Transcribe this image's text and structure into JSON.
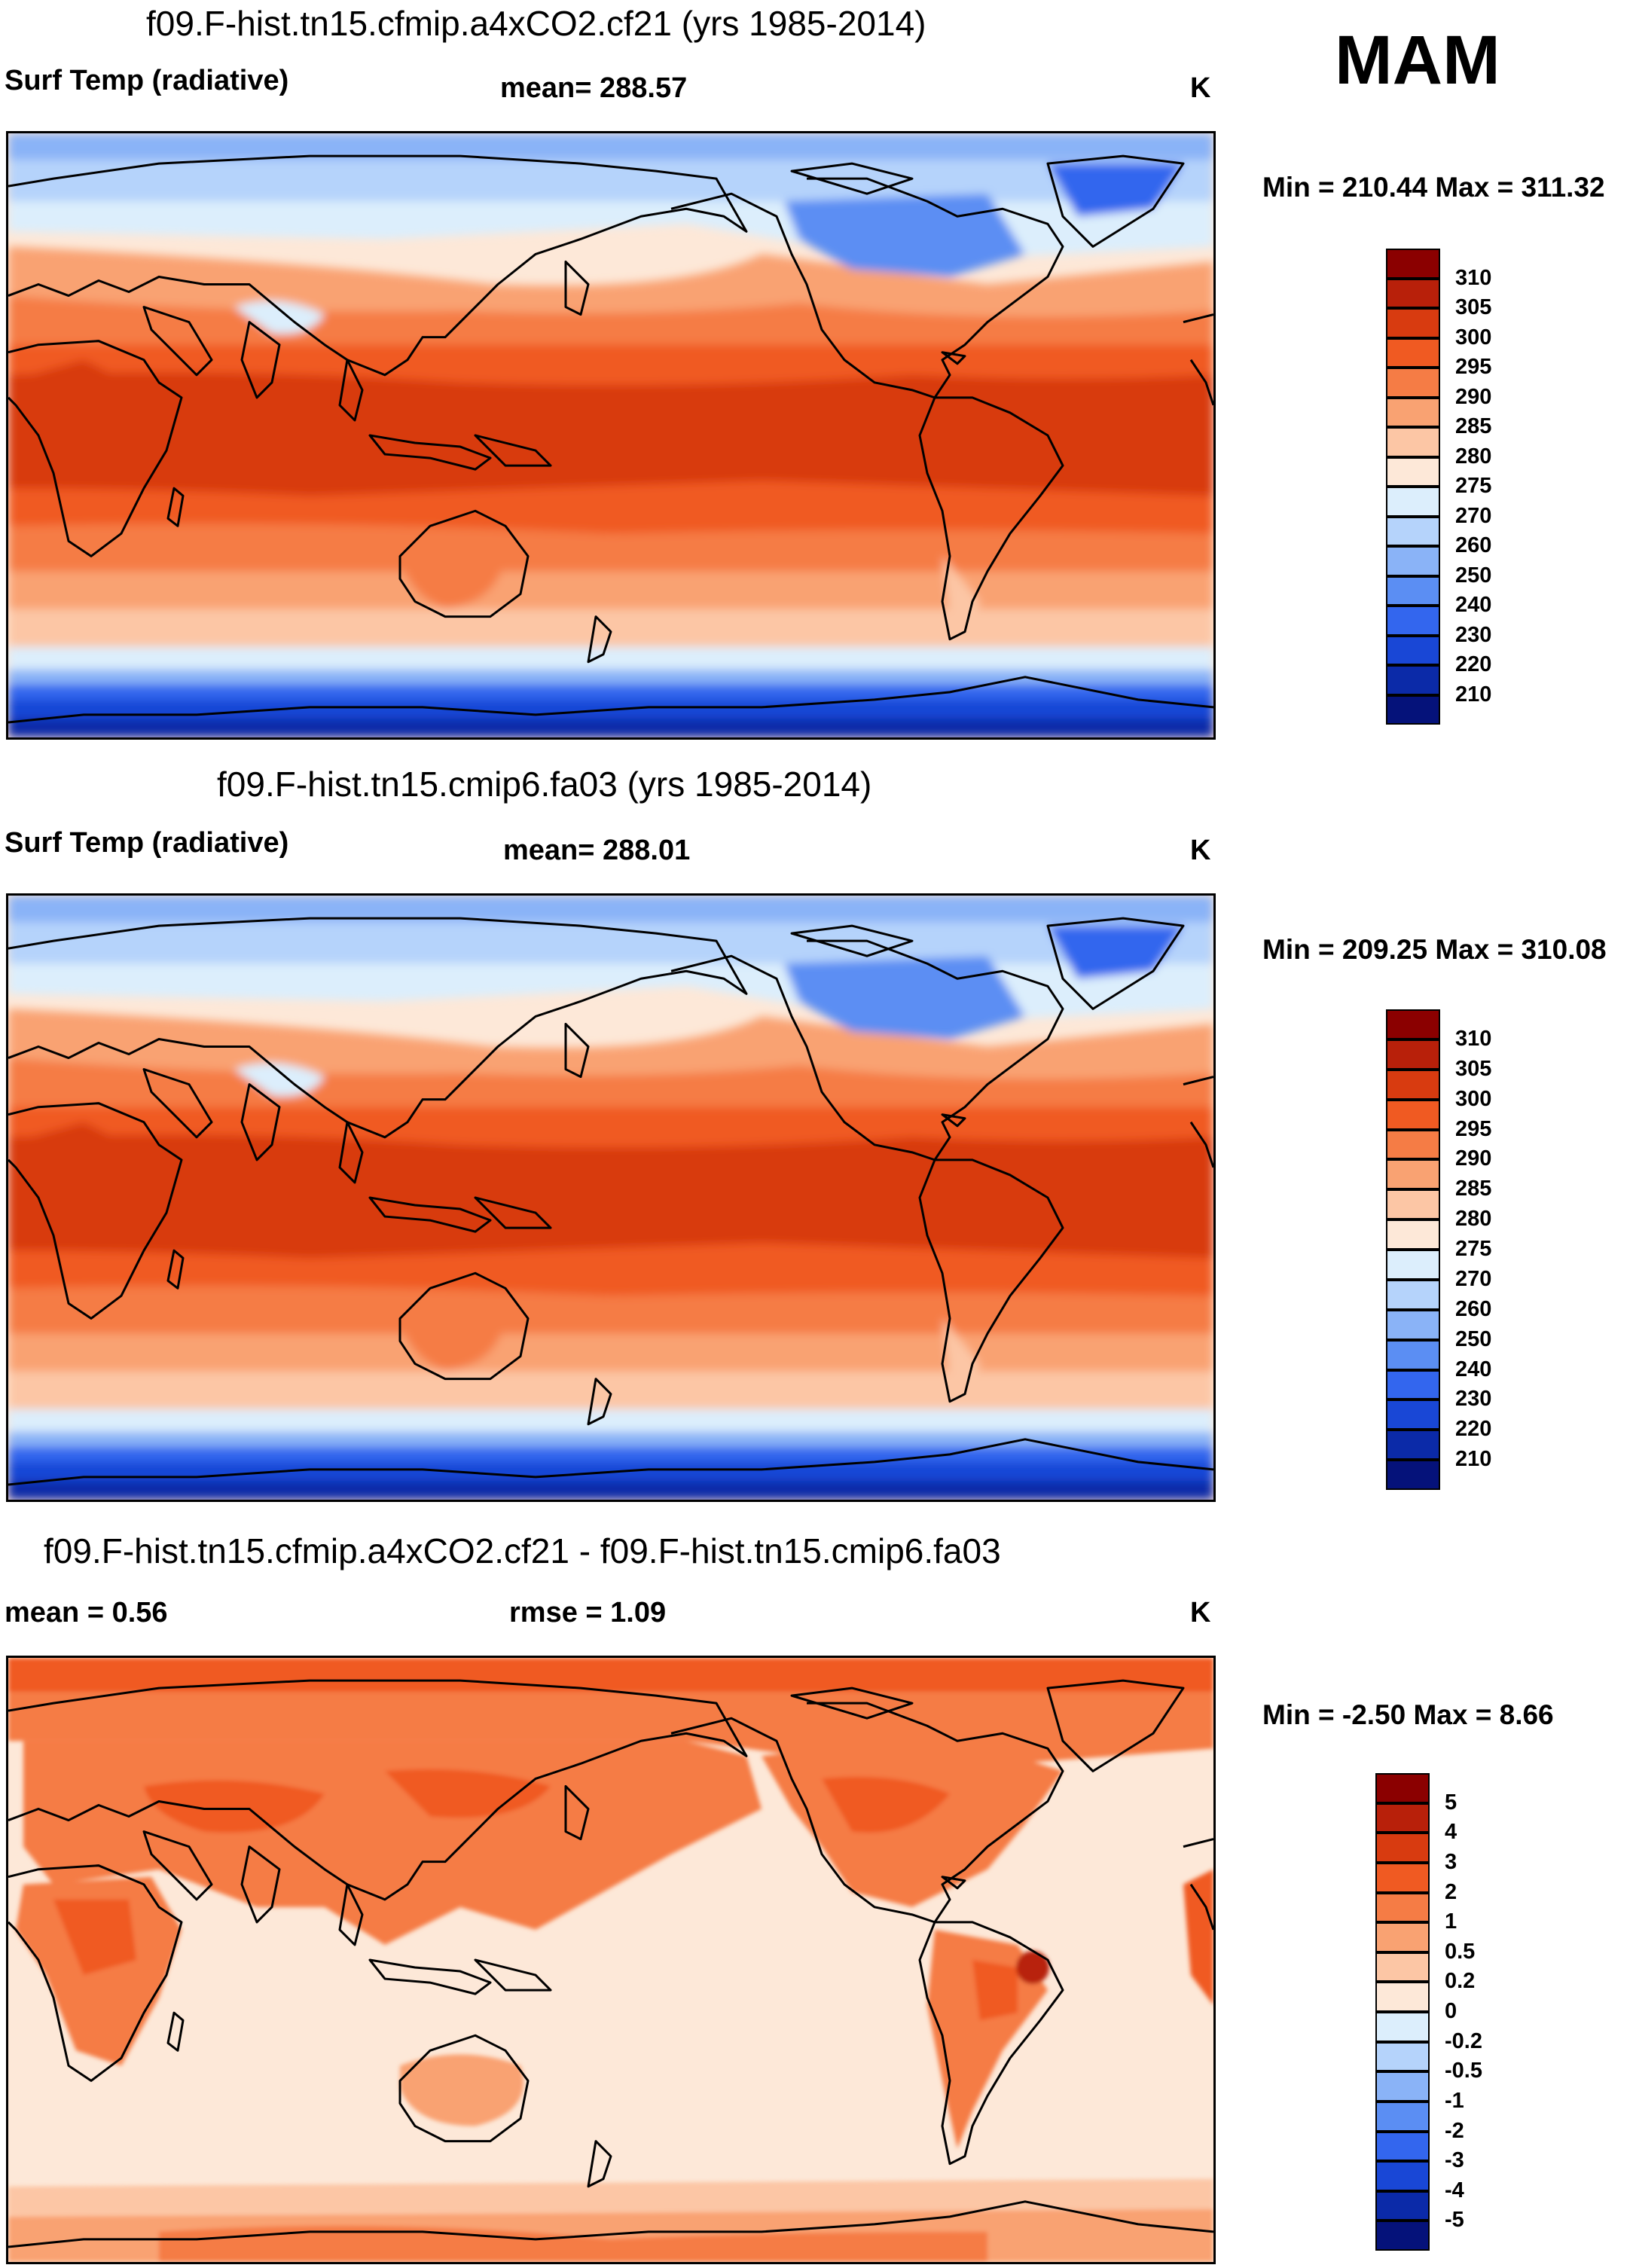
{
  "season": "MAM",
  "panels": [
    {
      "title": "f09.F-hist.tn15.cfmip.a4xCO2.cf21 (yrs 1985-2014)",
      "left_label": "Surf Temp (radiative)",
      "center_label": "mean= 288.57",
      "right_label": "K",
      "minmax": "Min = 210.44 Max = 311.32",
      "map_name": "map-cfmip-a4xco2",
      "variant": "abs"
    },
    {
      "title": "f09.F-hist.tn15.cmip6.fa03 (yrs 1985-2014)",
      "left_label": "Surf Temp (radiative)",
      "center_label": "mean= 288.01",
      "right_label": "K",
      "minmax": "Min = 209.25 Max = 310.08",
      "map_name": "map-cmip6-fa03",
      "variant": "abs"
    },
    {
      "title": "f09.F-hist.tn15.cfmip.a4xCO2.cf21 - f09.F-hist.tn15.cmip6.fa03",
      "left_label": "mean =   0.56",
      "center_label": "rmse =   1.09",
      "right_label": "K",
      "minmax": "Min =  -2.50 Max =   8.66",
      "map_name": "map-difference",
      "variant": "diff"
    }
  ],
  "colorbars": {
    "absolute": {
      "labels": [
        "310",
        "305",
        "300",
        "295",
        "290",
        "285",
        "280",
        "275",
        "270",
        "260",
        "250",
        "240",
        "230",
        "220",
        "210"
      ],
      "colors": [
        "#8b0000",
        "#b8200a",
        "#d83b10",
        "#f05a22",
        "#f57c45",
        "#f9a272",
        "#fcc6a5",
        "#fde8d8",
        "#dceefc",
        "#b5d3fb",
        "#8ab3f7",
        "#5b8ef3",
        "#3366ee",
        "#1947d6",
        "#0b2aa8",
        "#05127a"
      ]
    },
    "difference": {
      "labels": [
        "5",
        "4",
        "3",
        "2",
        "1",
        "0.5",
        "0.2",
        "0",
        "-0.2",
        "-0.5",
        "-1",
        "-2",
        "-3",
        "-4",
        "-5"
      ],
      "colors": [
        "#8b0000",
        "#b8200a",
        "#d83b10",
        "#f05a22",
        "#f57c45",
        "#f9a272",
        "#fcc6a5",
        "#fde8d8",
        "#dceefc",
        "#b5d3fb",
        "#8ab3f7",
        "#5b8ef3",
        "#3366ee",
        "#1947d6",
        "#0b2aa8",
        "#05127a"
      ]
    }
  }
}
